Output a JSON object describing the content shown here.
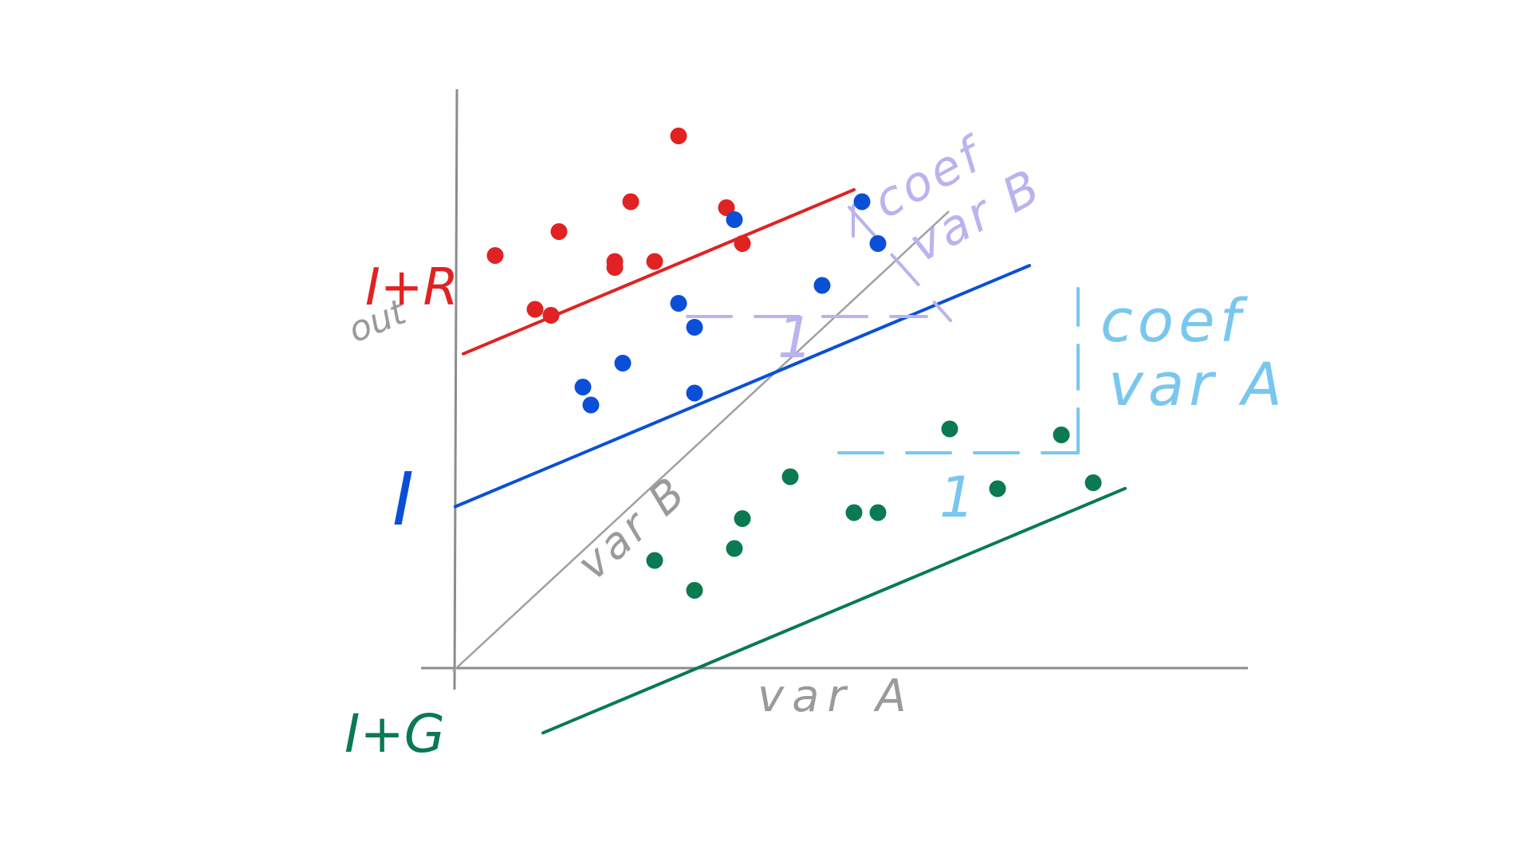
{
  "labels": {
    "intercept": "I",
    "intercept_plus_r": "I+R",
    "intercept_plus_g": "I+G",
    "out": "out",
    "var_a": "var A",
    "var_b": "var B",
    "coef_var_a_line1": "coef",
    "coef_var_a_line2": "var A",
    "coef_var_b_line1": "coef",
    "coef_var_b_line2": "var B",
    "one_a": "1",
    "one_b": "1"
  },
  "colors": {
    "red": "#e02222",
    "blue": "#0b4fd9",
    "green": "#0a7a50",
    "gray": "#9a9a9a",
    "light_blue": "#79c7ef",
    "lavender": "#b9b3ef"
  },
  "groups": {
    "red": {
      "intercept_out": 0.52,
      "points": [
        [
          0.05,
          0.69
        ],
        [
          0.1,
          0.6
        ],
        [
          0.12,
          0.59
        ],
        [
          0.13,
          0.73
        ],
        [
          0.2,
          0.68
        ],
        [
          0.2,
          0.67
        ],
        [
          0.22,
          0.78
        ],
        [
          0.25,
          0.68
        ],
        [
          0.28,
          0.89
        ],
        [
          0.34,
          0.77
        ],
        [
          0.36,
          0.71
        ]
      ]
    },
    "blue": {
      "intercept_out": 0.27,
      "points": [
        [
          0.16,
          0.47
        ],
        [
          0.17,
          0.44
        ],
        [
          0.21,
          0.51
        ],
        [
          0.28,
          0.61
        ],
        [
          0.3,
          0.57
        ],
        [
          0.3,
          0.46
        ],
        [
          0.35,
          0.75
        ],
        [
          0.46,
          0.64
        ],
        [
          0.51,
          0.78
        ],
        [
          0.53,
          0.71
        ]
      ]
    },
    "green": {
      "intercept_out": -0.17,
      "points": [
        [
          0.25,
          0.18
        ],
        [
          0.3,
          0.13
        ],
        [
          0.35,
          0.2
        ],
        [
          0.36,
          0.25
        ],
        [
          0.42,
          0.32
        ],
        [
          0.5,
          0.26
        ],
        [
          0.53,
          0.26
        ],
        [
          0.62,
          0.4
        ],
        [
          0.68,
          0.3
        ],
        [
          0.76,
          0.39
        ],
        [
          0.8,
          0.31
        ]
      ]
    }
  },
  "slope": 0.56
}
